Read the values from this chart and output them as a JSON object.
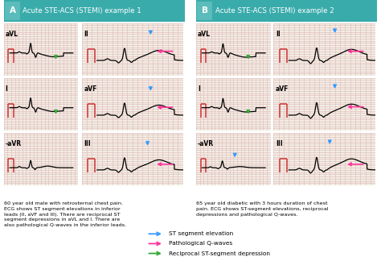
{
  "title_a": "Acute STE-ACS (STEMI) example 1",
  "title_b": "Acute STE-ACS (STEMI) example 2",
  "title_bg": "#3aabab",
  "title_text_color": "white",
  "letter_bg": "#5bbcbb",
  "grid_bg": "#f2ede4",
  "grid_line_color": "#e0b8b8",
  "ecg_color": "black",
  "text_left_1": "60 year old male with retrosternal chest pain.\nECG shows ST segment elevations in inferior\nleads (II, aVF and III). There are reciprocal ST\nsegment depressions in aVL and I. There are\nalso pathological Q-waves in the inferior leads.",
  "text_right_1": "65 year old diabetic with 3 hours duration of chest\npain. ECG shows ST-segment elevations, reciprocal\ndepressions and pathological Q-waves.",
  "legend_items": [
    {
      "label": "ST segment elevation",
      "color": "#3399ff"
    },
    {
      "label": "Pathological Q-waves",
      "color": "#ff3399"
    },
    {
      "label": "Reciprocal ST-segment depression",
      "color": "#33aa33"
    }
  ]
}
